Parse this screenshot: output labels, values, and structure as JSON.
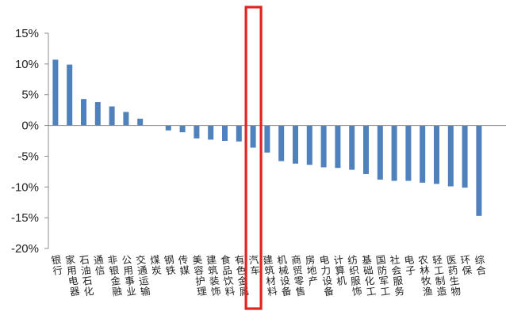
{
  "chart_data": {
    "type": "bar",
    "title": "",
    "xlabel": "",
    "ylabel": "",
    "ylim": [
      -20,
      15
    ],
    "yticks": [
      "15%",
      "10%",
      "5%",
      "0%",
      "-5%",
      "-10%",
      "-15%",
      "-20%"
    ],
    "ytick_values": [
      15,
      10,
      5,
      0,
      -5,
      -10,
      -15,
      -20
    ],
    "grid": false,
    "legend": "none",
    "bar_color": "#4F81BD",
    "highlight_color": "#E32322",
    "highlight_category": "汽车",
    "categories": [
      "银行",
      "家用电器",
      "石油石化",
      "通信",
      "非银金融",
      "公用事业",
      "交通运输",
      "煤炭",
      "钢铁",
      "传媒",
      "美容护理",
      "建筑装饰",
      "食品饮料",
      "有色金属",
      "汽车",
      "建筑材料",
      "机械设备",
      "商贸零售",
      "房地产",
      "电力设备",
      "计算机",
      "纺织服饰",
      "基础化工",
      "国防军工",
      "社会服务",
      "电子",
      "农林牧渔",
      "轻工制造",
      "医药生物",
      "环保",
      "综合"
    ],
    "values": [
      10.7,
      9.9,
      4.3,
      3.8,
      3.1,
      2.2,
      1.1,
      0.0,
      -0.8,
      -1.1,
      -2.1,
      -2.3,
      -2.5,
      -2.6,
      -3.6,
      -4.4,
      -5.8,
      -6.2,
      -6.4,
      -6.8,
      -6.9,
      -7.2,
      -7.9,
      -8.8,
      -9.0,
      -9.0,
      -9.3,
      -9.5,
      -9.9,
      -10.1,
      -14.7
    ]
  }
}
